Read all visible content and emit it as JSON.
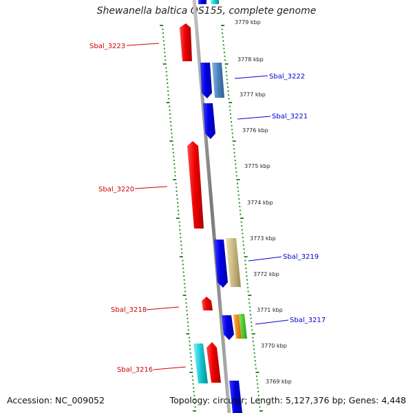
{
  "title": "Shewanella baltica OS155, complete genome",
  "footer": {
    "accession": "Accession: NC_009052",
    "summary": "Topology: circular; Length: 5,127,376 bp; Genes: 4,448"
  },
  "colors": {
    "backbone": "#8a8a8a",
    "ticks": "#2a8a2a",
    "forward_gene": "#e00000",
    "reverse_gene": "#0000e0",
    "forward_label": "#cc0000",
    "reverse_label": "#0000cc"
  },
  "scale": {
    "unit": "kbp",
    "labels": [
      "3779 kbp",
      "3778 kbp",
      "3777 kbp",
      "3776 kbp",
      "3775 kbp",
      "3774 kbp",
      "3773 kbp",
      "3772 kbp",
      "3771 kbp",
      "3770 kbp",
      "3769 kbp"
    ]
  },
  "gene_labels": [
    {
      "name": "Sbal_3223",
      "strand": "forward"
    },
    {
      "name": "Sbal_3222",
      "strand": "reverse"
    },
    {
      "name": "Sbal_3221",
      "strand": "reverse"
    },
    {
      "name": "Sbal_3220",
      "strand": "forward"
    },
    {
      "name": "Sbal_3219",
      "strand": "reverse"
    },
    {
      "name": "Sbal_3218",
      "strand": "forward"
    },
    {
      "name": "Sbal_3217",
      "strand": "reverse"
    },
    {
      "name": "Sbal_3216",
      "strand": "forward"
    }
  ]
}
